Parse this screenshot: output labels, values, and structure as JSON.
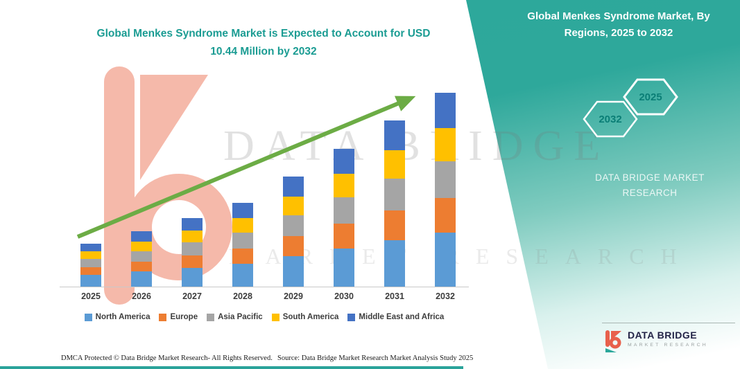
{
  "main_title": {
    "line1": "Global Menkes Syndrome Market is Expected to Account for USD",
    "line2": "10.44 Million by 2032"
  },
  "right_panel": {
    "title_line1": "Global Menkes Syndrome Market, By",
    "title_line2": "Regions, 2025 to 2032",
    "hexagons": [
      {
        "label": "2032"
      },
      {
        "label": "2025"
      }
    ],
    "brand_line1": "DATA BRIDGE MARKET",
    "brand_line2": "RESEARCH",
    "accent_teal": "#2EA89B"
  },
  "watermarks": {
    "big_text": "DATA BRIDGE",
    "sub_text": "MARKET RESEARCH"
  },
  "chart_data": {
    "type": "bar",
    "stacked": true,
    "title": "Global Menkes Syndrome Market is Expected to Account for USD 10.44 Million by 2032",
    "unit": "USD Million",
    "categories": [
      "2025",
      "2026",
      "2027",
      "2028",
      "2029",
      "2030",
      "2031",
      "2032"
    ],
    "series": [
      {
        "name": "North America",
        "color": "#5B9BD5",
        "values": [
          0.66,
          0.84,
          1.04,
          1.27,
          1.67,
          2.08,
          2.51,
          2.92
        ]
      },
      {
        "name": "Europe",
        "color": "#ED7D31",
        "values": [
          0.42,
          0.54,
          0.67,
          0.82,
          1.07,
          1.34,
          1.61,
          1.88
        ]
      },
      {
        "name": "Asia Pacific",
        "color": "#A5A5A5",
        "values": [
          0.45,
          0.57,
          0.71,
          0.86,
          1.13,
          1.41,
          1.7,
          1.98
        ]
      },
      {
        "name": "South America",
        "color": "#FFC000",
        "values": [
          0.4,
          0.51,
          0.63,
          0.77,
          1.01,
          1.26,
          1.52,
          1.77
        ]
      },
      {
        "name": "Middle East and Africa",
        "color": "#4472C4",
        "values": [
          0.42,
          0.54,
          0.67,
          0.83,
          1.07,
          1.35,
          1.61,
          1.89
        ]
      }
    ],
    "totals": [
      2.35,
      3.0,
      3.72,
      4.55,
      5.95,
      7.44,
      8.95,
      10.44
    ],
    "ylim": [
      0,
      11
    ],
    "y_axis_visible": false,
    "grid": false,
    "legend_position": "bottom",
    "trend_arrow": true,
    "trend_arrow_color": "#6CAC45"
  },
  "footer": {
    "left": "DMCA Protected © Data Bridge Market Research-  All Rights Reserved.",
    "source": "Source: Data Bridge Market Research  Market Analysis Study 2025"
  },
  "logo": {
    "name": "DATA BRIDGE",
    "tagline": "MARKET RESEARCH"
  }
}
